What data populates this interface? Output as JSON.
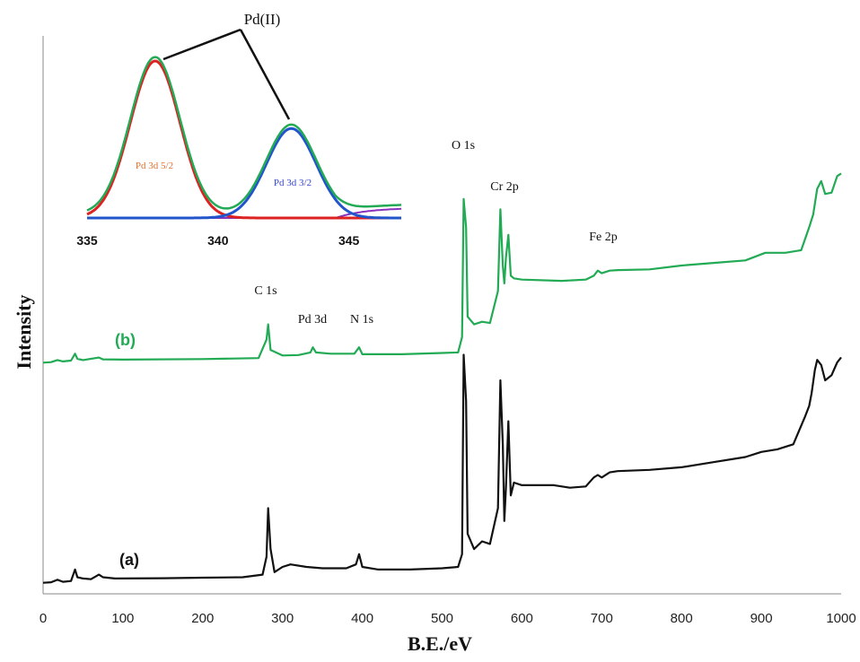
{
  "chart_data": [
    {
      "type": "line",
      "xlabel": "B.E./eV",
      "ylabel": "Intensity",
      "xlim": [
        0,
        1000
      ],
      "xticks": [
        "0",
        "100",
        "200",
        "300",
        "400",
        "500",
        "600",
        "700",
        "800",
        "900",
        "1000"
      ],
      "series": [
        {
          "name": "(a)",
          "color": "#111111",
          "points": [
            [
              0,
              0.8
            ],
            [
              10,
              1
            ],
            [
              18,
              2
            ],
            [
              25,
              1.2
            ],
            [
              35,
              1.5
            ],
            [
              40,
              6
            ],
            [
              43,
              3
            ],
            [
              50,
              2.5
            ],
            [
              60,
              2.2
            ],
            [
              70,
              4
            ],
            [
              75,
              3
            ],
            [
              90,
              2.5
            ],
            [
              150,
              2.6
            ],
            [
              200,
              2.8
            ],
            [
              250,
              3
            ],
            [
              275,
              4
            ],
            [
              280,
              11
            ],
            [
              282,
              30
            ],
            [
              285,
              14
            ],
            [
              290,
              5
            ],
            [
              300,
              7
            ],
            [
              310,
              8
            ],
            [
              330,
              7
            ],
            [
              350,
              6.5
            ],
            [
              380,
              6.5
            ],
            [
              392,
              8
            ],
            [
              396,
              12
            ],
            [
              400,
              7
            ],
            [
              420,
              6
            ],
            [
              460,
              6
            ],
            [
              500,
              6.5
            ],
            [
              520,
              7
            ],
            [
              525,
              12
            ],
            [
              527,
              90
            ],
            [
              530,
              72
            ],
            [
              532,
              20
            ],
            [
              540,
              14
            ],
            [
              550,
              17
            ],
            [
              560,
              16
            ],
            [
              570,
              30
            ],
            [
              573,
              80
            ],
            [
              576,
              55
            ],
            [
              578,
              25
            ],
            [
              580,
              38
            ],
            [
              583,
              64
            ],
            [
              586,
              35
            ],
            [
              590,
              40
            ],
            [
              600,
              39
            ],
            [
              640,
              39
            ],
            [
              660,
              38
            ],
            [
              680,
              38.5
            ],
            [
              690,
              42
            ],
            [
              695,
              43
            ],
            [
              700,
              42
            ],
            [
              710,
              44
            ],
            [
              720,
              44.5
            ],
            [
              760,
              45
            ],
            [
              800,
              46
            ],
            [
              840,
              48
            ],
            [
              880,
              50
            ],
            [
              900,
              52
            ],
            [
              920,
              53
            ],
            [
              940,
              55
            ],
            [
              955,
              66
            ],
            [
              960,
              70
            ],
            [
              963,
              75
            ],
            [
              967,
              84
            ],
            [
              970,
              88
            ],
            [
              975,
              86
            ],
            [
              980,
              80
            ],
            [
              988,
              82
            ],
            [
              995,
              87
            ],
            [
              1000,
              89
            ]
          ]
        },
        {
          "name": "(b)",
          "color": "#22aa55",
          "points": [
            [
              0,
              2
            ],
            [
              10,
              2.2
            ],
            [
              18,
              3
            ],
            [
              25,
              2.5
            ],
            [
              35,
              2.8
            ],
            [
              40,
              5.5
            ],
            [
              43,
              3.5
            ],
            [
              50,
              3
            ],
            [
              70,
              4
            ],
            [
              75,
              3.3
            ],
            [
              100,
              3.2
            ],
            [
              200,
              3.4
            ],
            [
              270,
              3.8
            ],
            [
              280,
              11
            ],
            [
              282,
              17
            ],
            [
              285,
              7
            ],
            [
              300,
              4.8
            ],
            [
              320,
              5
            ],
            [
              335,
              6
            ],
            [
              338,
              8
            ],
            [
              342,
              6
            ],
            [
              360,
              5.5
            ],
            [
              390,
              5.5
            ],
            [
              396,
              8
            ],
            [
              400,
              5.3
            ],
            [
              450,
              5.3
            ],
            [
              500,
              5.8
            ],
            [
              520,
              6
            ],
            [
              525,
              12
            ],
            [
              527,
              66
            ],
            [
              530,
              55
            ],
            [
              532,
              20
            ],
            [
              540,
              17
            ],
            [
              550,
              18
            ],
            [
              560,
              17.5
            ],
            [
              570,
              30
            ],
            [
              573,
              62
            ],
            [
              576,
              40
            ],
            [
              578,
              33
            ],
            [
              580,
              43
            ],
            [
              583,
              52
            ],
            [
              586,
              36
            ],
            [
              590,
              35
            ],
            [
              600,
              34.5
            ],
            [
              650,
              34
            ],
            [
              680,
              34.5
            ],
            [
              690,
              36
            ],
            [
              695,
              38
            ],
            [
              700,
              37
            ],
            [
              710,
              38
            ],
            [
              720,
              38.2
            ],
            [
              760,
              38.5
            ],
            [
              800,
              40
            ],
            [
              840,
              41
            ],
            [
              880,
              42
            ],
            [
              905,
              45
            ],
            [
              930,
              45
            ],
            [
              950,
              46
            ],
            [
              960,
              55
            ],
            [
              965,
              60
            ],
            [
              970,
              70
            ],
            [
              975,
              73
            ],
            [
              980,
              68
            ],
            [
              988,
              68.5
            ],
            [
              995,
              75
            ],
            [
              1000,
              76
            ]
          ]
        }
      ],
      "annotations": [
        "C 1s",
        "Pd 3d",
        "N 1s",
        "O 1s",
        "Cr 2p",
        "Fe 2p"
      ]
    },
    {
      "type": "line",
      "title": "Pd(II)",
      "xlim": [
        335,
        347
      ],
      "xticks": [
        "335",
        "340",
        "345"
      ],
      "series": [
        {
          "name": "Pd 3d 5/2",
          "color": "#dd2222",
          "center": 337.6,
          "height": 1.0,
          "sigma": 0.95
        },
        {
          "name": "Pd 3d 3/2",
          "color": "#2255cc",
          "center": 342.8,
          "height": 0.57,
          "sigma": 0.95
        },
        {
          "name": "",
          "color": "#22aa55",
          "role": "envelope"
        },
        {
          "name": "",
          "color": "#8833bb",
          "role": "baseline"
        }
      ]
    }
  ]
}
